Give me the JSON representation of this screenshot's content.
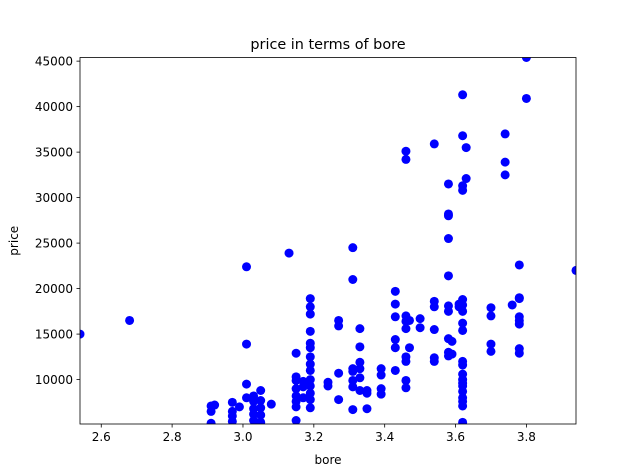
{
  "chart_data": {
    "type": "scatter",
    "title": "price in terms of bore",
    "xlabel": "bore",
    "ylabel": "price",
    "xlim": [
      2.54,
      3.94
    ],
    "ylim": [
      5118,
      45400
    ],
    "xticks": [
      {
        "v": 2.6,
        "label": "2.6"
      },
      {
        "v": 2.8,
        "label": "2.8"
      },
      {
        "v": 3.0,
        "label": "3.0"
      },
      {
        "v": 3.2,
        "label": "3.2"
      },
      {
        "v": 3.4,
        "label": "3.4"
      },
      {
        "v": 3.6,
        "label": "3.6"
      },
      {
        "v": 3.8,
        "label": "3.8"
      }
    ],
    "yticks": [
      {
        "v": 10000,
        "label": "10000"
      },
      {
        "v": 15000,
        "label": "15000"
      },
      {
        "v": 20000,
        "label": "20000"
      },
      {
        "v": 25000,
        "label": "25000"
      },
      {
        "v": 30000,
        "label": "30000"
      },
      {
        "v": 35000,
        "label": "35000"
      },
      {
        "v": 40000,
        "label": "40000"
      },
      {
        "v": 45000,
        "label": "45000"
      }
    ],
    "grid": false,
    "marker_color": "#0000ff",
    "points": [
      [
        2.54,
        15000
      ],
      [
        2.68,
        16500
      ],
      [
        2.91,
        5200
      ],
      [
        2.91,
        6500
      ],
      [
        2.91,
        7100
      ],
      [
        2.92,
        7200
      ],
      [
        2.97,
        5400
      ],
      [
        2.97,
        6000
      ],
      [
        2.97,
        6500
      ],
      [
        2.97,
        7500
      ],
      [
        2.99,
        7000
      ],
      [
        3.01,
        8000
      ],
      [
        3.01,
        9500
      ],
      [
        3.01,
        13900
      ],
      [
        3.01,
        22400
      ],
      [
        3.03,
        5500
      ],
      [
        3.03,
        6200
      ],
      [
        3.03,
        6800
      ],
      [
        3.03,
        7600
      ],
      [
        3.03,
        8200
      ],
      [
        3.05,
        5300
      ],
      [
        3.05,
        6100
      ],
      [
        3.05,
        6900
      ],
      [
        3.05,
        7700
      ],
      [
        3.05,
        8800
      ],
      [
        3.08,
        7300
      ],
      [
        3.13,
        23900
      ],
      [
        3.15,
        5500
      ],
      [
        3.15,
        7000
      ],
      [
        3.15,
        7600
      ],
      [
        3.15,
        8200
      ],
      [
        3.15,
        9000
      ],
      [
        3.15,
        9900
      ],
      [
        3.15,
        10300
      ],
      [
        3.15,
        12900
      ],
      [
        3.17,
        8000
      ],
      [
        3.17,
        9200
      ],
      [
        3.17,
        9800
      ],
      [
        3.19,
        6900
      ],
      [
        3.19,
        7800
      ],
      [
        3.19,
        8500
      ],
      [
        3.19,
        9300
      ],
      [
        3.19,
        10000
      ],
      [
        3.19,
        11000
      ],
      [
        3.19,
        11700
      ],
      [
        3.19,
        12500
      ],
      [
        3.19,
        13500
      ],
      [
        3.19,
        14000
      ],
      [
        3.19,
        15300
      ],
      [
        3.19,
        17200
      ],
      [
        3.19,
        18000
      ],
      [
        3.19,
        18900
      ],
      [
        3.24,
        9300
      ],
      [
        3.24,
        9700
      ],
      [
        3.27,
        7800
      ],
      [
        3.27,
        10700
      ],
      [
        3.27,
        15900
      ],
      [
        3.27,
        16500
      ],
      [
        3.31,
        6700
      ],
      [
        3.31,
        9200
      ],
      [
        3.31,
        9900
      ],
      [
        3.31,
        10900
      ],
      [
        3.31,
        11200
      ],
      [
        3.31,
        21000
      ],
      [
        3.31,
        24500
      ],
      [
        3.33,
        8800
      ],
      [
        3.33,
        10200
      ],
      [
        3.33,
        11200
      ],
      [
        3.33,
        11900
      ],
      [
        3.33,
        13600
      ],
      [
        3.33,
        15600
      ],
      [
        3.35,
        6800
      ],
      [
        3.35,
        8500
      ],
      [
        3.35,
        8800
      ],
      [
        3.39,
        8400
      ],
      [
        3.39,
        9000
      ],
      [
        3.39,
        10500
      ],
      [
        3.39,
        11200
      ],
      [
        3.43,
        11000
      ],
      [
        3.43,
        13500
      ],
      [
        3.43,
        14400
      ],
      [
        3.43,
        16900
      ],
      [
        3.43,
        18300
      ],
      [
        3.43,
        19700
      ],
      [
        3.46,
        9100
      ],
      [
        3.46,
        9900
      ],
      [
        3.46,
        12000
      ],
      [
        3.46,
        12500
      ],
      [
        3.46,
        15600
      ],
      [
        3.46,
        16400
      ],
      [
        3.46,
        17000
      ],
      [
        3.46,
        34200
      ],
      [
        3.46,
        35100
      ],
      [
        3.47,
        13500
      ],
      [
        3.47,
        16500
      ],
      [
        3.5,
        15700
      ],
      [
        3.5,
        16700
      ],
      [
        3.54,
        12000
      ],
      [
        3.54,
        12400
      ],
      [
        3.54,
        15500
      ],
      [
        3.54,
        18000
      ],
      [
        3.54,
        18600
      ],
      [
        3.54,
        35900
      ],
      [
        3.58,
        12600
      ],
      [
        3.58,
        13000
      ],
      [
        3.58,
        14500
      ],
      [
        3.58,
        17500
      ],
      [
        3.58,
        18100
      ],
      [
        3.58,
        21400
      ],
      [
        3.58,
        25500
      ],
      [
        3.58,
        28000
      ],
      [
        3.58,
        28200
      ],
      [
        3.58,
        31500
      ],
      [
        3.59,
        12800
      ],
      [
        3.59,
        14200
      ],
      [
        3.61,
        18000
      ],
      [
        3.61,
        18300
      ],
      [
        3.62,
        5300
      ],
      [
        3.62,
        7100
      ],
      [
        3.62,
        7600
      ],
      [
        3.62,
        8000
      ],
      [
        3.62,
        8700
      ],
      [
        3.62,
        9300
      ],
      [
        3.62,
        9600
      ],
      [
        3.62,
        10000
      ],
      [
        3.62,
        10600
      ],
      [
        3.62,
        11600
      ],
      [
        3.62,
        12000
      ],
      [
        3.62,
        15400
      ],
      [
        3.62,
        16200
      ],
      [
        3.62,
        17500
      ],
      [
        3.62,
        18200
      ],
      [
        3.62,
        18800
      ],
      [
        3.62,
        30800
      ],
      [
        3.62,
        31300
      ],
      [
        3.62,
        36800
      ],
      [
        3.62,
        41300
      ],
      [
        3.63,
        32100
      ],
      [
        3.63,
        35500
      ],
      [
        3.7,
        13100
      ],
      [
        3.7,
        13900
      ],
      [
        3.7,
        17000
      ],
      [
        3.7,
        17900
      ],
      [
        3.74,
        32500
      ],
      [
        3.74,
        33900
      ],
      [
        3.74,
        37000
      ],
      [
        3.76,
        18200
      ],
      [
        3.78,
        12900
      ],
      [
        3.78,
        13400
      ],
      [
        3.78,
        16100
      ],
      [
        3.78,
        16500
      ],
      [
        3.78,
        16900
      ],
      [
        3.78,
        18900
      ],
      [
        3.78,
        19000
      ],
      [
        3.78,
        22600
      ],
      [
        3.8,
        40900
      ],
      [
        3.8,
        45400
      ],
      [
        3.94,
        22000
      ]
    ]
  }
}
